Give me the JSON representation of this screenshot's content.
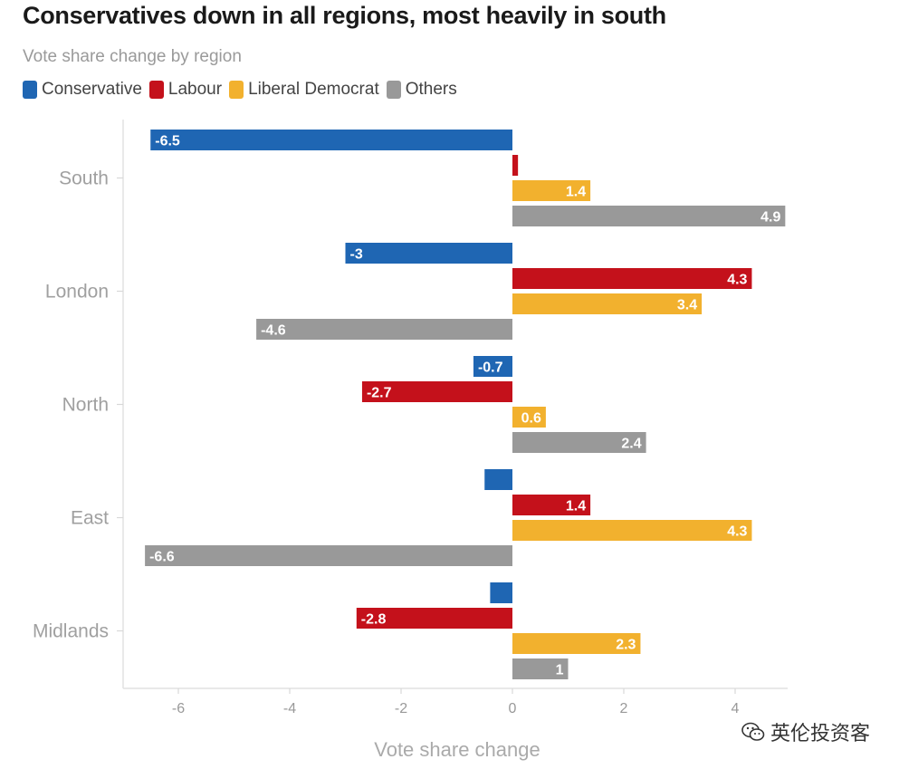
{
  "chart_data": {
    "type": "bar",
    "orientation": "horizontal",
    "title": "Conservatives down in all regions, most heavily in south",
    "subtitle": "Vote share change by region",
    "xlabel": "Vote share change",
    "ylabel": "",
    "xlim": [
      -6.8,
      4.8
    ],
    "xticks": [
      -6,
      -4,
      -2,
      0,
      2,
      4
    ],
    "grid": false,
    "legend_position": "top-left",
    "categories": [
      "South",
      "London",
      "North",
      "East",
      "Midlands"
    ],
    "series": [
      {
        "name": "Conservative",
        "color": "#1f66b3",
        "values": [
          -6.5,
          -3,
          -0.7,
          -0.5,
          -0.4
        ],
        "labels": [
          "-6.5",
          "-3",
          "-0.7",
          "",
          ""
        ]
      },
      {
        "name": "Labour",
        "color": "#c4111b",
        "values": [
          0.1,
          4.3,
          -2.7,
          1.4,
          -2.8
        ],
        "labels": [
          "",
          "4.3",
          "-2.7",
          "1.4",
          "-2.8"
        ]
      },
      {
        "name": "Liberal Democrat",
        "color": "#f2b12e",
        "values": [
          1.4,
          3.4,
          0.6,
          4.3,
          2.3
        ],
        "labels": [
          "1.4",
          "3.4",
          "0.6",
          "4.3",
          "2.3"
        ]
      },
      {
        "name": "Others",
        "color": "#999999",
        "values": [
          4.9,
          -4.6,
          2.4,
          -6.6,
          1
        ],
        "labels": [
          "4.9",
          "-4.6",
          "2.4",
          "-6.6",
          "1"
        ]
      }
    ]
  },
  "watermark": {
    "text": "英伦投资客",
    "icon": "wechat-icon"
  }
}
